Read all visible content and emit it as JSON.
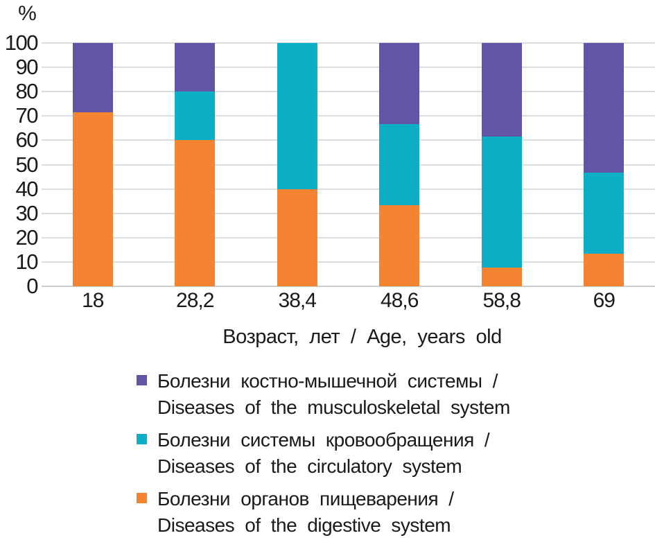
{
  "chart_data": {
    "type": "bar",
    "variant": "stacked-100-percent",
    "unit_label": "%",
    "xlabel": "Возраст, лет / Age, years old",
    "ylabel": "%",
    "ylim": [
      0,
      100
    ],
    "yticks": [
      0,
      10,
      20,
      30,
      40,
      50,
      60,
      70,
      80,
      90,
      100
    ],
    "grid": true,
    "legend_position": "bottom",
    "categories": [
      "18",
      "28,2",
      "38,4",
      "48,6",
      "58,8",
      "69"
    ],
    "series": [
      {
        "name": "Болезни органов пищеварения / Diseases of the digestive system",
        "legend_line1": "Болезни органов пищеварения /",
        "legend_line2": "Diseases of the digestive system",
        "color": "#F58432",
        "values": [
          71.4,
          60,
          40,
          33.3,
          7.7,
          13.3
        ]
      },
      {
        "name": "Болезни системы кровообращения / Diseases of the circulatory system",
        "legend_line1": "Болезни системы кровообращения /",
        "legend_line2": "Diseases of the circulatory system",
        "color": "#0DAEC6",
        "values": [
          0,
          20,
          60,
          33.3,
          53.8,
          33.3
        ]
      },
      {
        "name": "Болезни костно-мышечной системы / Diseases of the musculoskeletal system",
        "legend_line1": "Болезни костно-мышечной системы /",
        "legend_line2": "Diseases of the musculoskeletal system",
        "color": "#6156A5",
        "values": [
          28.6,
          20,
          0,
          33.4,
          38.5,
          53.4
        ]
      }
    ],
    "legend_order": [
      2,
      1,
      0
    ],
    "colors": {
      "gridline": "#D9DCE0",
      "baseline": "#C9CED4",
      "text": "#1A1A1A",
      "background": "#FFFFFF"
    }
  }
}
